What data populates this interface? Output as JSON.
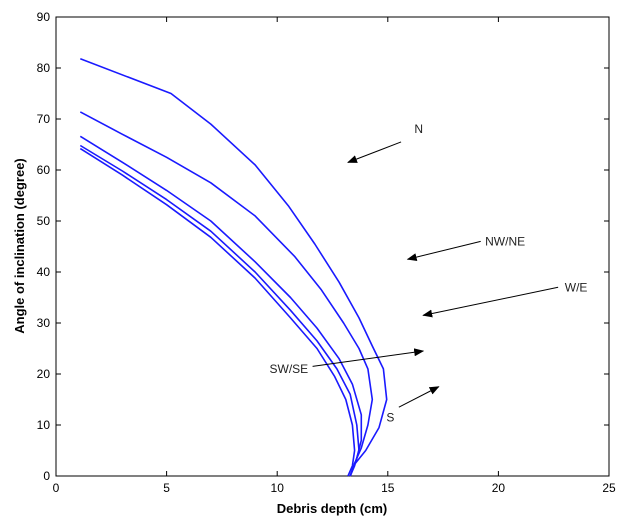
{
  "chart_data": {
    "type": "line",
    "title": "",
    "xlabel": "Debris depth (cm)",
    "ylabel": "Angle of inclination (degree)",
    "xlim": [
      0,
      25
    ],
    "ylim": [
      0,
      90
    ],
    "xticks": [
      0,
      5,
      10,
      15,
      20,
      25
    ],
    "yticks": [
      0,
      10,
      20,
      30,
      40,
      50,
      60,
      70,
      80,
      90
    ],
    "grid": false,
    "line_color": "#1a1aff",
    "series": [
      {
        "name": "N",
        "points": [
          [
            1.1,
            81.8
          ],
          [
            5.2,
            75
          ],
          [
            7,
            69
          ],
          [
            9,
            61
          ],
          [
            10.5,
            53
          ],
          [
            11.7,
            45.5
          ],
          [
            12.8,
            38
          ],
          [
            13.7,
            31
          ],
          [
            14.3,
            25.5
          ],
          [
            14.8,
            21
          ],
          [
            14.95,
            15
          ],
          [
            14.6,
            9.5
          ],
          [
            14,
            5
          ],
          [
            13.5,
            2.3
          ],
          [
            13.3,
            0
          ]
        ]
      },
      {
        "name": "NW/NE",
        "points": [
          [
            1.1,
            71.4
          ],
          [
            3,
            67
          ],
          [
            5,
            62.5
          ],
          [
            7,
            57.5
          ],
          [
            9,
            51
          ],
          [
            10.8,
            43
          ],
          [
            12,
            36.5
          ],
          [
            13,
            30
          ],
          [
            13.7,
            25
          ],
          [
            14.1,
            21
          ],
          [
            14.3,
            15
          ],
          [
            14.1,
            10
          ],
          [
            13.8,
            5.5
          ],
          [
            13.5,
            2.5
          ],
          [
            13.3,
            0
          ]
        ]
      },
      {
        "name": "W/E",
        "points": [
          [
            1.1,
            66.6
          ],
          [
            3,
            61.5
          ],
          [
            5,
            56
          ],
          [
            7,
            50
          ],
          [
            9,
            42
          ],
          [
            10.6,
            35
          ],
          [
            11.8,
            29
          ],
          [
            12.8,
            23
          ],
          [
            13.4,
            18
          ],
          [
            13.8,
            12
          ],
          [
            13.8,
            7
          ],
          [
            13.6,
            3.5
          ],
          [
            13.3,
            0
          ]
        ]
      },
      {
        "name": "SW/SE",
        "points": [
          [
            1.1,
            64.8
          ],
          [
            3,
            59.8
          ],
          [
            5,
            54.2
          ],
          [
            7,
            48
          ],
          [
            9,
            40
          ],
          [
            10.6,
            32.5
          ],
          [
            11.8,
            26.5
          ],
          [
            12.7,
            21
          ],
          [
            13.3,
            16
          ],
          [
            13.6,
            10
          ],
          [
            13.7,
            5
          ],
          [
            13.5,
            2
          ],
          [
            13.3,
            0
          ]
        ]
      },
      {
        "name": "S",
        "points": [
          [
            1.1,
            64.2
          ],
          [
            3,
            59
          ],
          [
            5,
            53.2
          ],
          [
            7,
            46.8
          ],
          [
            9,
            38.8
          ],
          [
            10.6,
            31
          ],
          [
            11.8,
            25
          ],
          [
            12.6,
            19.5
          ],
          [
            13.1,
            15
          ],
          [
            13.4,
            10
          ],
          [
            13.5,
            5
          ],
          [
            13.4,
            2
          ],
          [
            13.2,
            0
          ]
        ]
      }
    ],
    "annotations": [
      {
        "text": "N",
        "label_pos": [
          16.2,
          68
        ],
        "arrow_from": [
          15.6,
          65.5
        ],
        "arrow_to": [
          13.2,
          61.5
        ]
      },
      {
        "text": "NW/NE",
        "label_pos": [
          19.4,
          46
        ],
        "arrow_from": [
          19.2,
          46
        ],
        "arrow_to": [
          15.9,
          42.5
        ]
      },
      {
        "text": "W/E",
        "label_pos": [
          23,
          37
        ],
        "arrow_from": [
          22.7,
          37
        ],
        "arrow_to": [
          16.6,
          31.5
        ]
      },
      {
        "text": "SW/SE",
        "label_pos": [
          11.4,
          21
        ],
        "arrow_from": [
          11.6,
          21.5
        ],
        "arrow_to": [
          16.6,
          24.5
        ]
      },
      {
        "text": "S",
        "label_pos": [
          15.3,
          11.5
        ],
        "arrow_from": [
          15.5,
          13.5
        ],
        "arrow_to": [
          17.3,
          17.5
        ]
      }
    ]
  }
}
